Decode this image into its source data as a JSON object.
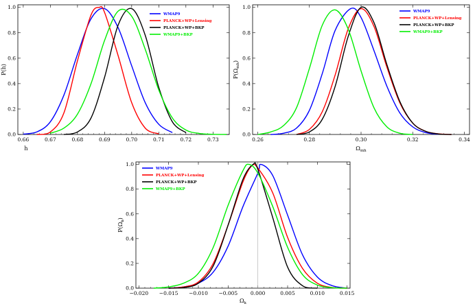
{
  "chart_data": [
    {
      "type": "line",
      "xlabel": "h",
      "ylabel": "P(h)",
      "xlim": [
        0.658,
        0.736
      ],
      "ylim": [
        0,
        1.02
      ],
      "xticks": [
        0.66,
        0.67,
        0.68,
        0.69,
        0.7,
        0.71,
        0.72,
        0.73
      ],
      "xtick_labels": [
        "0.66",
        "0.67",
        "0.68",
        "0.69",
        "0.70",
        "0.71",
        "0.72",
        "0.73"
      ],
      "yticks": [
        0,
        0.2,
        0.4,
        0.6,
        0.8,
        1.0
      ],
      "ytick_labels": [
        "0.0",
        "0.2",
        "0.4",
        "0.6",
        "0.8",
        "1.0"
      ],
      "legend_position": "top-right",
      "series": [
        {
          "name": "WMAP9",
          "color": "#0000ff",
          "x": [
            0.66,
            0.665,
            0.67,
            0.675,
            0.68,
            0.685,
            0.69,
            0.695,
            0.7,
            0.705,
            0.71,
            0.715
          ],
          "y": [
            0.003,
            0.02,
            0.1,
            0.31,
            0.63,
            0.91,
            0.99,
            0.84,
            0.54,
            0.25,
            0.08,
            0.015
          ]
        },
        {
          "name": "PLANCK+WP+Lensing",
          "color": "#ff0000",
          "x": [
            0.665,
            0.67,
            0.675,
            0.68,
            0.685,
            0.688,
            0.69,
            0.695,
            0.7,
            0.705,
            0.71
          ],
          "y": [
            0.0,
            0.02,
            0.17,
            0.58,
            0.94,
            1.0,
            0.96,
            0.62,
            0.25,
            0.05,
            0.005
          ]
        },
        {
          "name": "PLANCK+WP+BKP",
          "color": "#000000",
          "x": [
            0.675,
            0.68,
            0.685,
            0.69,
            0.695,
            0.7,
            0.705,
            0.71,
            0.715,
            0.72
          ],
          "y": [
            0.0,
            0.02,
            0.13,
            0.45,
            0.86,
            0.99,
            0.78,
            0.37,
            0.1,
            0.015
          ]
        },
        {
          "name": "WMAP9+BKP",
          "color": "#00ee00",
          "x": [
            0.67,
            0.675,
            0.68,
            0.685,
            0.69,
            0.695,
            0.7,
            0.705,
            0.71,
            0.715,
            0.72,
            0.725,
            0.73,
            0.735
          ],
          "y": [
            0.01,
            0.05,
            0.16,
            0.4,
            0.74,
            0.97,
            0.93,
            0.67,
            0.35,
            0.13,
            0.035,
            0.008,
            0.0015,
            0.0
          ]
        }
      ]
    },
    {
      "type": "line",
      "xlabel": "Ω_mh",
      "ylabel": "P(Ω_mh)",
      "xlim": [
        0.258,
        0.342
      ],
      "ylim": [
        0,
        1.02
      ],
      "xticks": [
        0.26,
        0.28,
        0.3,
        0.32,
        0.34
      ],
      "xtick_labels": [
        "0.26",
        "0.28",
        "0.30",
        "0.32",
        "0.34"
      ],
      "yticks": [
        0,
        0.2,
        0.4,
        0.6,
        0.8,
        1.0
      ],
      "ytick_labels": [
        "0.0",
        "0.2",
        "0.4",
        "0.6",
        "0.8",
        "1.0"
      ],
      "legend_position": "top-right",
      "series": [
        {
          "name": "WMAP9",
          "color": "#0000ff",
          "x": [
            0.265,
            0.27,
            0.275,
            0.28,
            0.285,
            0.29,
            0.296,
            0.3,
            0.305,
            0.31,
            0.315,
            0.32,
            0.325,
            0.33
          ],
          "y": [
            0.0,
            0.01,
            0.05,
            0.19,
            0.48,
            0.82,
            0.99,
            0.92,
            0.66,
            0.38,
            0.17,
            0.06,
            0.015,
            0.002
          ]
        },
        {
          "name": "PLANCK+WP+Lensing",
          "color": "#ff0000",
          "x": [
            0.275,
            0.28,
            0.285,
            0.29,
            0.295,
            0.3,
            0.305,
            0.31,
            0.315,
            0.32,
            0.325,
            0.33,
            0.335
          ],
          "y": [
            0.0,
            0.04,
            0.18,
            0.47,
            0.83,
            0.99,
            0.85,
            0.53,
            0.25,
            0.09,
            0.025,
            0.005,
            0.0
          ]
        },
        {
          "name": "PLANCK+WP+BKP",
          "color": "#000000",
          "x": [
            0.275,
            0.28,
            0.285,
            0.29,
            0.295,
            0.3,
            0.305,
            0.31,
            0.315,
            0.32,
            0.325,
            0.33,
            0.335
          ],
          "y": [
            0.0,
            0.02,
            0.12,
            0.38,
            0.77,
            1.0,
            0.88,
            0.55,
            0.26,
            0.09,
            0.025,
            0.004,
            0.0
          ]
        },
        {
          "name": "WMAP9+BKP",
          "color": "#00ee00",
          "x": [
            0.26,
            0.265,
            0.27,
            0.275,
            0.28,
            0.285,
            0.29,
            0.295,
            0.3,
            0.305,
            0.31,
            0.315,
            0.32
          ],
          "y": [
            0.0,
            0.02,
            0.07,
            0.21,
            0.52,
            0.86,
            0.98,
            0.83,
            0.5,
            0.21,
            0.06,
            0.01,
            0.0
          ]
        }
      ]
    },
    {
      "type": "line",
      "xlabel": "Ω_k",
      "ylabel": "P(Ω_k)",
      "xlim": [
        -0.0205,
        0.0155
      ],
      "ylim": [
        0,
        1.02
      ],
      "xticks": [
        -0.02,
        -0.015,
        -0.01,
        -0.005,
        0.0,
        0.005,
        0.01,
        0.015
      ],
      "xtick_labels": [
        "−0.020",
        "−0.015",
        "−0.010",
        "−0.005",
        "0.000",
        "0.005",
        "0.010",
        "0.015"
      ],
      "yticks": [
        0,
        0.2,
        0.4,
        0.6,
        0.8,
        1.0
      ],
      "ytick_labels": [
        "0.0",
        "0.2",
        "0.4",
        "0.6",
        "0.8",
        "1.0"
      ],
      "legend_position": "top-left",
      "series": [
        {
          "name": "WMAP9",
          "color": "#0000ff",
          "x": [
            -0.015,
            -0.0125,
            -0.01,
            -0.0075,
            -0.005,
            -0.0025,
            0.0,
            0.0005,
            0.0025,
            0.005,
            0.0075,
            0.01,
            0.0125,
            0.015
          ],
          "y": [
            0.0,
            0.01,
            0.04,
            0.13,
            0.34,
            0.66,
            0.93,
            1.0,
            0.91,
            0.59,
            0.27,
            0.09,
            0.02,
            0.0
          ]
        },
        {
          "name": "PLANCK+WP+Lensing",
          "color": "#ff0000",
          "x": [
            -0.015,
            -0.0125,
            -0.01,
            -0.0075,
            -0.005,
            -0.0025,
            -0.001,
            0.0,
            0.0025,
            0.005,
            0.0075,
            0.01,
            0.0125,
            0.015
          ],
          "y": [
            0.0,
            0.01,
            0.05,
            0.2,
            0.51,
            0.86,
            0.99,
            0.97,
            0.77,
            0.41,
            0.16,
            0.04,
            0.005,
            0.0
          ]
        },
        {
          "name": "PLANCK+WP+BKP",
          "color": "#000000",
          "x": [
            -0.015,
            -0.0125,
            -0.01,
            -0.0075,
            -0.005,
            -0.0025,
            -0.0008,
            0.0,
            0.0025,
            0.005,
            0.0075,
            0.01
          ],
          "y": [
            0.0,
            0.005,
            0.04,
            0.18,
            0.51,
            0.88,
            1.0,
            0.96,
            0.57,
            0.17,
            0.02,
            0.0
          ]
        },
        {
          "name": "WMAP9+BKP",
          "color": "#00ee00",
          "x": [
            -0.0175,
            -0.015,
            -0.0125,
            -0.01,
            -0.0075,
            -0.005,
            -0.0025,
            -0.0015,
            0.0,
            0.0025,
            0.005,
            0.0075,
            0.01,
            0.0125,
            0.015
          ],
          "y": [
            0.0,
            0.01,
            0.04,
            0.12,
            0.33,
            0.67,
            0.95,
            1.0,
            0.93,
            0.66,
            0.33,
            0.11,
            0.025,
            0.004,
            0.0
          ]
        }
      ]
    }
  ]
}
